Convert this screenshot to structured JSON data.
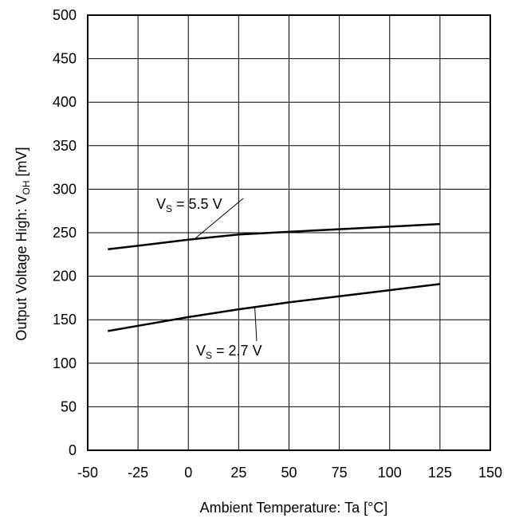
{
  "chart_data": {
    "type": "line",
    "xlabel": "Ambient Temperature: Ta [°C]",
    "ylabel": {
      "main": "Output Voltage High: V",
      "sub": "OH",
      "unit": " [mV]"
    },
    "xlim": [
      -50,
      150
    ],
    "ylim": [
      0,
      500
    ],
    "xticks": [
      "-50",
      "-25",
      "0",
      "25",
      "50",
      "75",
      "100",
      "125",
      "150"
    ],
    "yticks": [
      "0",
      "50",
      "100",
      "150",
      "200",
      "250",
      "300",
      "350",
      "400",
      "450",
      "500"
    ],
    "grid": true,
    "series": [
      {
        "label": {
          "main": "V",
          "sub": "S",
          "rest": " = 5.5 V"
        },
        "x": [
          -40,
          -25,
          0,
          25,
          50,
          75,
          100,
          125
        ],
        "y": [
          231,
          235,
          242,
          248,
          251,
          254,
          257,
          260
        ]
      },
      {
        "label": {
          "main": "V",
          "sub": "S",
          "rest": " = 2.7 V"
        },
        "x": [
          -40,
          -25,
          0,
          25,
          50,
          75,
          100,
          125
        ],
        "y": [
          137,
          143,
          153,
          162,
          170,
          177,
          184,
          191
        ]
      }
    ]
  }
}
